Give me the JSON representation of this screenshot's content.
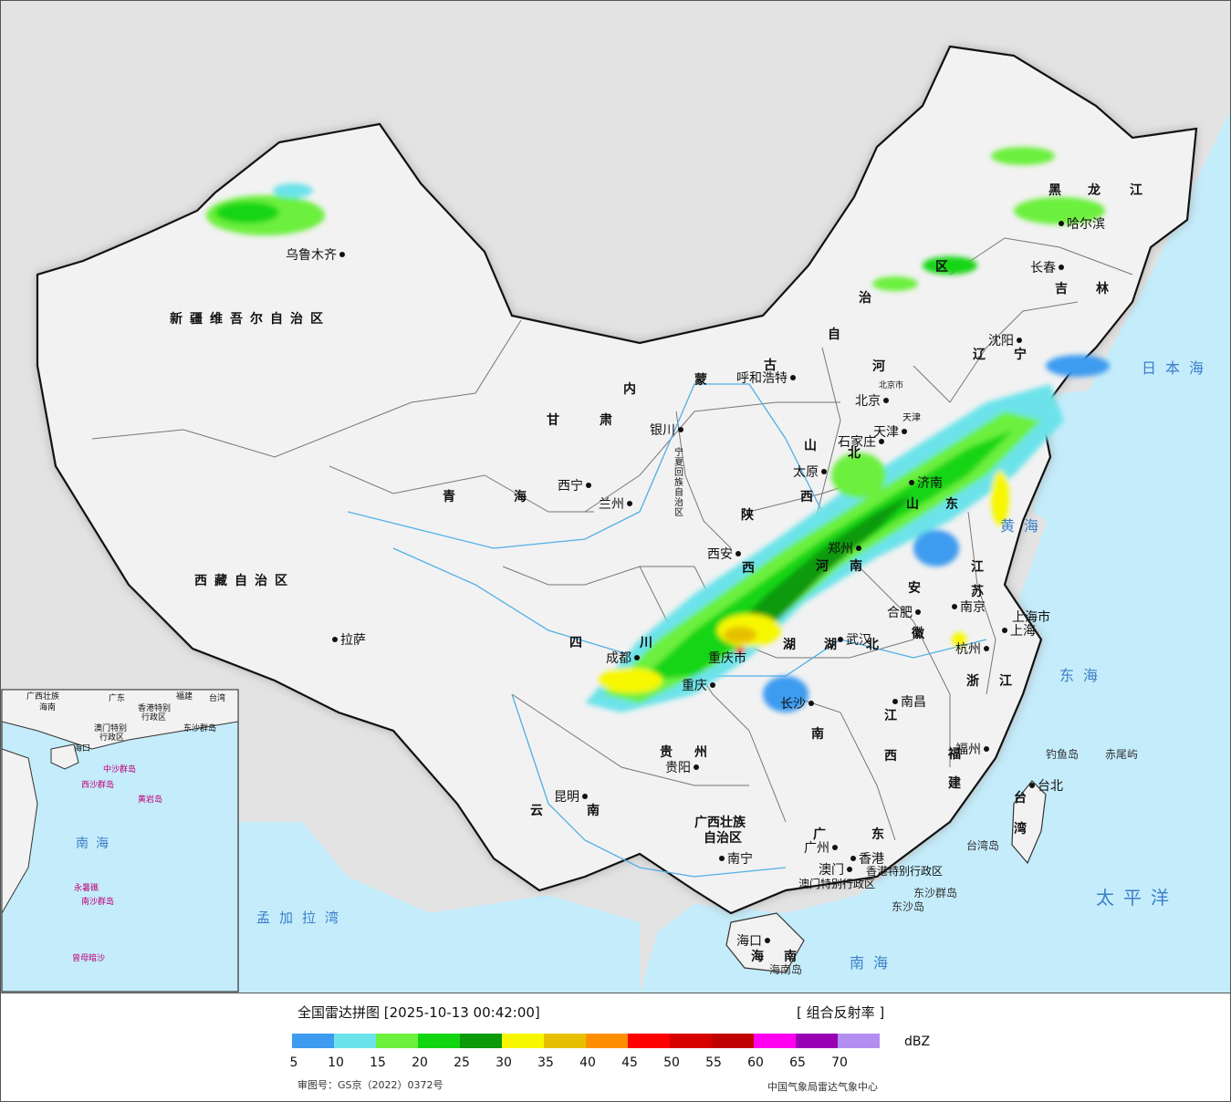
{
  "legend": {
    "title": "全国雷达拼图 [2025-10-13 00:42:00]",
    "product": "[ 组合反射率 ]",
    "unit": "dBZ",
    "approval": "审图号：GS京（2022）0372号",
    "org": "中国气象局雷达气象中心",
    "colors": [
      "#3d9bf0",
      "#6ce3ea",
      "#6cf03c",
      "#12d512",
      "#0a9a0a",
      "#f7f700",
      "#e6c000",
      "#ff8f00",
      "#ff0000",
      "#d60000",
      "#c00000",
      "#ff00f0",
      "#9800b4",
      "#b28ef0"
    ],
    "ticks": [
      "5",
      "10",
      "15",
      "20",
      "25",
      "30",
      "35",
      "40",
      "45",
      "50",
      "55",
      "60",
      "65",
      "70"
    ]
  },
  "map": {
    "provinces": [
      "新疆维吾尔自治区",
      "西藏自治区",
      "青",
      "海",
      "甘",
      "肃",
      "内",
      "蒙",
      "古",
      "自",
      "治",
      "区",
      "黑",
      "龙",
      "江",
      "吉",
      "林",
      "辽",
      "宁",
      "河",
      "北",
      "山",
      "西",
      "陕",
      "西",
      "四",
      "川",
      "云",
      "南",
      "贵",
      "州",
      "广西壮族",
      "自治区",
      "广",
      "东",
      "湖",
      "南",
      "湖",
      "北",
      "江",
      "西",
      "福",
      "建",
      "浙",
      "江",
      "安",
      "徽",
      "江",
      "苏",
      "山",
      "东",
      "河",
      "南",
      "宁夏回族自治区",
      "台",
      "湾",
      "海",
      "南",
      "上海市",
      "北京市",
      "天津",
      "重庆市"
    ],
    "cities": [
      "乌鲁木齐",
      "拉萨",
      "西宁",
      "兰州",
      "银川",
      "呼和浩特",
      "西安",
      "成都",
      "重庆",
      "贵阳",
      "昆明",
      "南宁",
      "广州",
      "澳门",
      "香港",
      "海口",
      "长沙",
      "武汉",
      "南昌",
      "福州",
      "台北",
      "杭州",
      "上海",
      "南京",
      "合肥",
      "济南",
      "石家庄",
      "太原",
      "北京",
      "天津",
      "沈阳",
      "长春",
      "哈尔滨",
      "郑州"
    ],
    "seas": [
      "日本海",
      "黄海",
      "东海",
      "南海",
      "太平洋",
      "孟加拉湾",
      "海南岛",
      "台湾岛",
      "钓鱼岛",
      "赤尾屿",
      "东沙群岛",
      "东沙岛",
      "香港特别行政区",
      "澳门特别行政区"
    ],
    "inset": [
      "南海",
      "广西壮族",
      "广东",
      "福建",
      "台湾",
      "海南",
      "香港特别",
      "行政区",
      "澳门特别",
      "行政区",
      "东沙群岛",
      "中沙群岛",
      "黄岩岛",
      "永暑礁",
      "南沙群岛",
      "曾母暗沙",
      "西沙群岛",
      "海口"
    ]
  }
}
